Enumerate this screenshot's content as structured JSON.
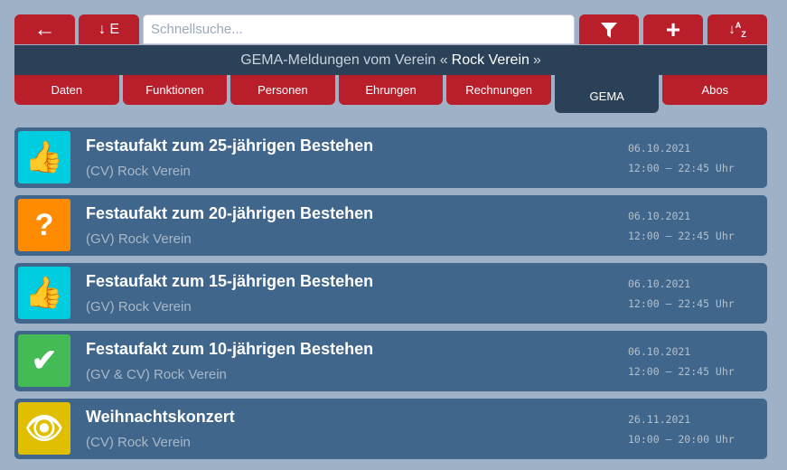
{
  "toolbar": {
    "back_icon": "arrow-left-icon",
    "sort_label": "↓ E",
    "search_placeholder": "Schnellsuche...",
    "search_value": "",
    "filter_icon": "filter-icon",
    "add_icon": "plus-icon",
    "sort_az_icon": "sort-alpha-icon"
  },
  "header": {
    "title_prefix": "GEMA-Meldungen vom Verein «",
    "club": "Rock Verein",
    "title_suffix": "»"
  },
  "tabs": [
    {
      "label": "Daten"
    },
    {
      "label": "Funktionen"
    },
    {
      "label": "Personen"
    },
    {
      "label": "Ehrungen"
    },
    {
      "label": "Rechnungen"
    },
    {
      "label": "GEMA",
      "active": true
    },
    {
      "label": "Abos"
    }
  ],
  "colors": {
    "red": "#b91f2a",
    "navy": "#2b4158",
    "card": "#40668b",
    "cyan": "#00cde0",
    "orange": "#ff8c00",
    "green": "#44bb55",
    "yellow": "#e0bf00"
  },
  "items": [
    {
      "title": "Festaufakt zum 25-jährigen Bestehen",
      "subtitle": "(CV) Rock Verein",
      "date": "06.10.2021",
      "time": "12:00 – 22:45 Uhr",
      "icon": "thumbs-up-icon",
      "glyph": "👍",
      "color": "#00cde0"
    },
    {
      "title": "Festaufakt zum 20-jährigen Bestehen",
      "subtitle": "(GV) Rock Verein",
      "date": "06.10.2021",
      "time": "12:00 – 22:45 Uhr",
      "icon": "question-icon",
      "glyph": "?",
      "color": "#ff8c00"
    },
    {
      "title": "Festaufakt zum 15-jährigen Bestehen",
      "subtitle": "(GV) Rock Verein",
      "date": "06.10.2021",
      "time": "12:00 – 22:45 Uhr",
      "icon": "thumbs-up-icon",
      "glyph": "👍",
      "color": "#00cde0"
    },
    {
      "title": "Festaufakt zum 10-jährigen Bestehen",
      "subtitle": "(GV & CV) Rock Verein",
      "date": "06.10.2021",
      "time": "12:00 – 22:45 Uhr",
      "icon": "check-icon",
      "glyph": "✔",
      "color": "#44bb55"
    },
    {
      "title": "Weihnachtskonzert",
      "subtitle": "(CV) Rock Verein",
      "date": "26.11.2021",
      "time": "10:00 – 20:00 Uhr",
      "icon": "eye-icon",
      "glyph": "👁",
      "color": "#e0bf00"
    }
  ]
}
